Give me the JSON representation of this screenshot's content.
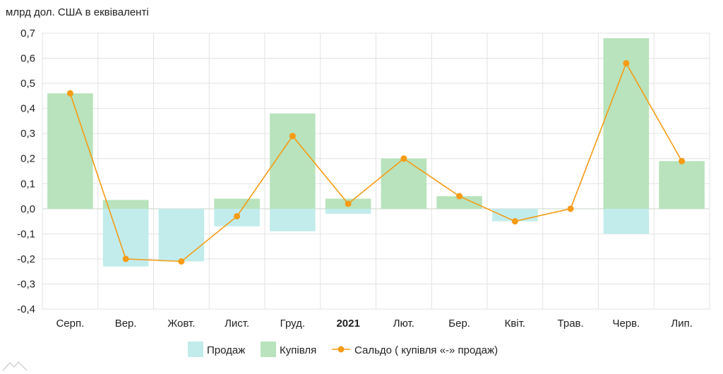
{
  "chart_data": {
    "type": "bar",
    "unit_label": "млрд дол. США в еквіваленті",
    "categories": [
      "Серп.",
      "Вер.",
      "Жовт.",
      "Лист.",
      "Груд.",
      "2021",
      "Лют.",
      "Бер.",
      "Квіт.",
      "Трав.",
      "Черв.",
      "Лип."
    ],
    "bold_categories": [
      "2021"
    ],
    "ylim": [
      -0.4,
      0.7
    ],
    "yticks": [
      "0,7",
      "0,6",
      "0,5",
      "0,4",
      "0,3",
      "0,2",
      "0,1",
      "0,0",
      "-0,1",
      "-0,2",
      "-0,3",
      "-0,4"
    ],
    "ytick_values": [
      0.7,
      0.6,
      0.5,
      0.4,
      0.3,
      0.2,
      0.1,
      0.0,
      -0.1,
      -0.2,
      -0.3,
      -0.4
    ],
    "grid": true,
    "legend_position": "bottom",
    "series": [
      {
        "name": "Продаж",
        "kind": "bar",
        "color": "#c2ecec",
        "values": [
          0,
          -0.23,
          -0.21,
          -0.07,
          -0.09,
          -0.02,
          0,
          0,
          -0.05,
          0,
          -0.1,
          0
        ]
      },
      {
        "name": "Купівля",
        "kind": "bar",
        "color": "#b8e3bc",
        "values": [
          0.46,
          0.035,
          0,
          0.04,
          0.38,
          0.04,
          0.2,
          0.05,
          0,
          0,
          0.68,
          0.19
        ]
      },
      {
        "name": "Сальдо ( купівля «-» продаж)",
        "kind": "line",
        "color": "#f59b14",
        "values": [
          0.46,
          -0.2,
          -0.21,
          -0.03,
          0.29,
          0.02,
          0.2,
          0.05,
          -0.05,
          0.0,
          0.58,
          0.19
        ]
      }
    ]
  }
}
